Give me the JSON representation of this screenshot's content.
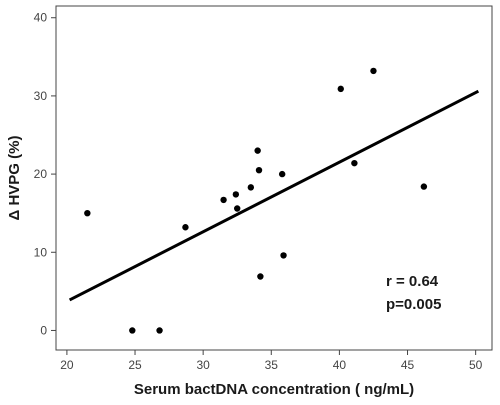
{
  "chart_data": {
    "type": "scatter",
    "xlabel": "Serum bactDNA concentration ( ng/mL)",
    "ylabel": "Δ HVPG (%)",
    "xlim": [
      19.2,
      51.2
    ],
    "ylim": [
      -2.5,
      41.5
    ],
    "x_ticks": [
      "20",
      "25",
      "30",
      "35",
      "40",
      "45",
      "50"
    ],
    "y_ticks": [
      "0",
      "10",
      "20",
      "30",
      "40"
    ],
    "points": [
      {
        "x": 21.5,
        "y": 15.0
      },
      {
        "x": 24.8,
        "y": 0.0
      },
      {
        "x": 26.8,
        "y": 0.0
      },
      {
        "x": 28.7,
        "y": 13.2
      },
      {
        "x": 31.5,
        "y": 16.7
      },
      {
        "x": 32.4,
        "y": 17.4
      },
      {
        "x": 32.5,
        "y": 15.6
      },
      {
        "x": 33.5,
        "y": 18.3
      },
      {
        "x": 34.0,
        "y": 23.0
      },
      {
        "x": 34.1,
        "y": 20.5
      },
      {
        "x": 34.2,
        "y": 6.9
      },
      {
        "x": 35.8,
        "y": 20.0
      },
      {
        "x": 35.9,
        "y": 9.6
      },
      {
        "x": 40.1,
        "y": 30.9
      },
      {
        "x": 41.1,
        "y": 21.4
      },
      {
        "x": 42.5,
        "y": 33.2
      },
      {
        "x": 46.2,
        "y": 18.4
      }
    ],
    "trendline": {
      "x": [
        20.2,
        50.2
      ],
      "y": [
        3.9,
        30.6
      ]
    },
    "annotations": [
      "r = 0.64",
      "p=0.005"
    ],
    "grid": false,
    "colors": {
      "points": "#000000",
      "trendline": "#000000",
      "axes": "#444444"
    }
  }
}
